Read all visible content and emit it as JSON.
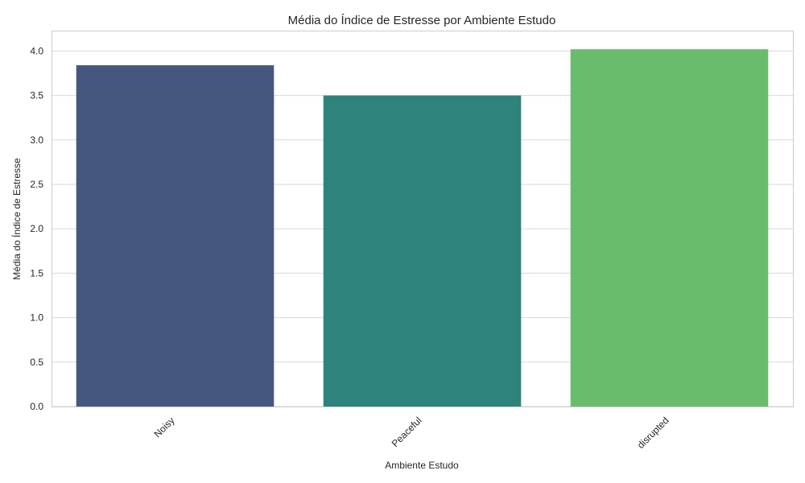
{
  "chart_data": {
    "type": "bar",
    "title": "Média do Índice de Estresse por Ambiente Estudo",
    "xlabel": "Ambiente Estudo",
    "ylabel": "Média do Índice de Estresse",
    "categories": [
      "Noisy",
      "Peaceful",
      "disrupted"
    ],
    "values": [
      3.84,
      3.5,
      4.02
    ],
    "colors": [
      "#46577f",
      "#2e837c",
      "#6abc6d"
    ],
    "ylim": [
      0,
      4.23
    ],
    "yticks": [
      "0.0",
      "0.5",
      "1.0",
      "1.5",
      "2.0",
      "2.5",
      "3.0",
      "3.5",
      "4.0"
    ],
    "grid": true,
    "legend": "none"
  }
}
